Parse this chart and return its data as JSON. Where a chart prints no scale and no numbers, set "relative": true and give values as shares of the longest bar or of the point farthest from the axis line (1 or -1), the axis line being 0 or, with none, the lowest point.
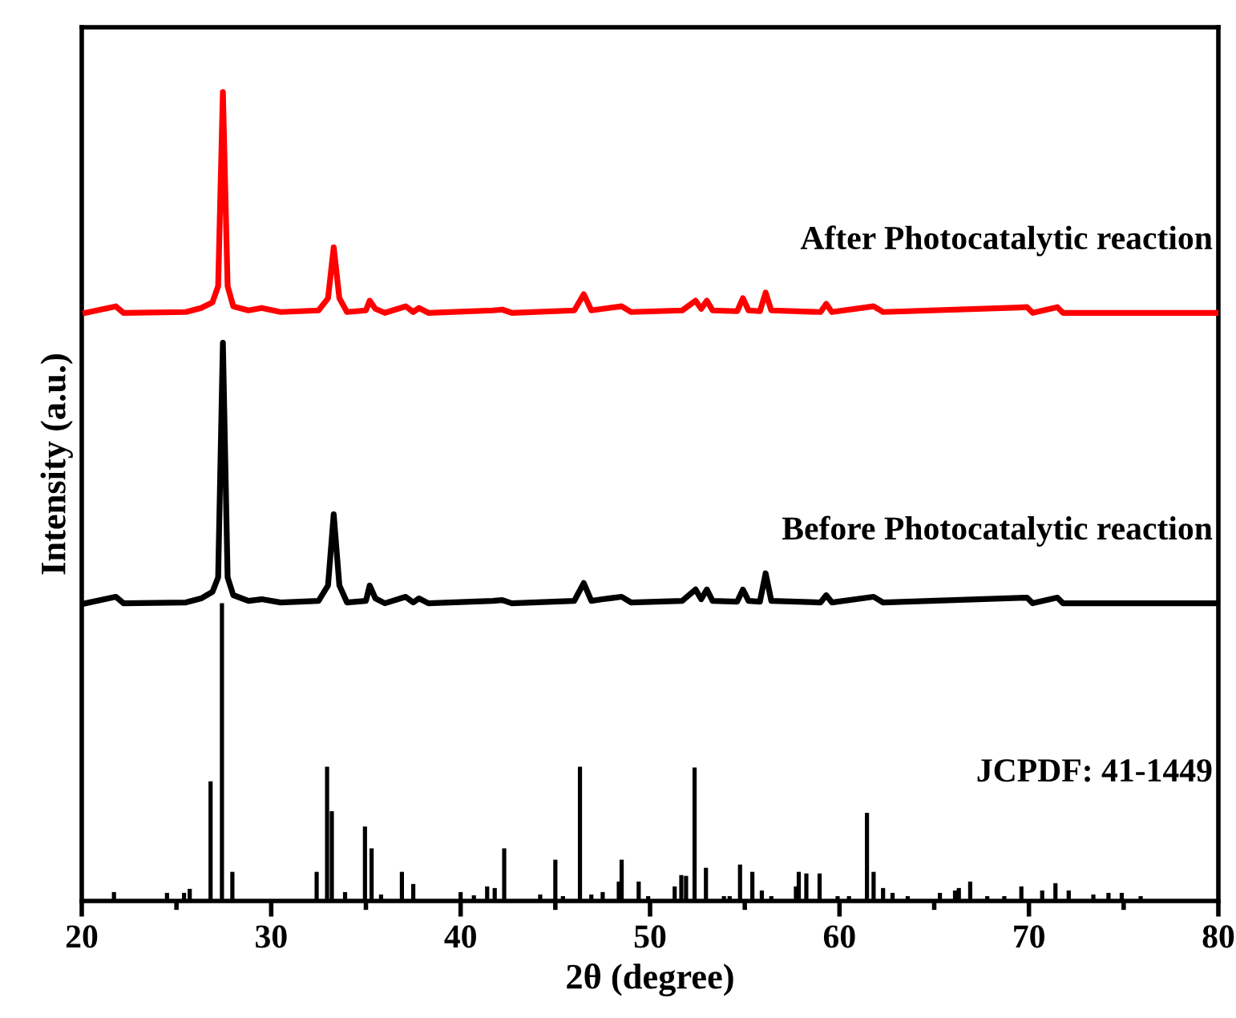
{
  "chart_data": {
    "type": "line",
    "relative": true,
    "xlabel": "2θ (degree)",
    "ylabel": "Intensity (a.u.)",
    "xlim": [
      20,
      80
    ],
    "xticks": [
      20,
      30,
      40,
      50,
      60,
      70,
      80
    ],
    "grid": false,
    "legend": false,
    "marker": "none",
    "line_style": "solid",
    "series": [
      {
        "name": "After Photocatalytic reaction",
        "color": "#ff0000",
        "x": [
          20.2,
          21.8,
          22.2,
          25.5,
          26.3,
          26.9,
          27.2,
          27.45,
          27.7,
          28.0,
          28.8,
          29.5,
          30.5,
          32.5,
          33.0,
          33.3,
          33.6,
          34.0,
          35.0,
          35.2,
          35.5,
          36.0,
          37.1,
          37.5,
          37.8,
          38.3,
          41.7,
          42.2,
          42.7,
          46.0,
          46.5,
          46.9,
          47.5,
          48.5,
          49.0,
          51.7,
          52.4,
          52.7,
          53.0,
          53.3,
          54.6,
          54.9,
          55.2,
          55.8,
          56.1,
          56.4,
          59.0,
          59.3,
          59.6,
          61.8,
          62.3,
          69.9,
          70.2,
          71.5,
          71.8,
          80
        ],
        "values": [
          0.727,
          0.735,
          0.727,
          0.728,
          0.733,
          0.74,
          0.76,
          1.0,
          0.76,
          0.735,
          0.73,
          0.733,
          0.728,
          0.73,
          0.745,
          0.808,
          0.745,
          0.728,
          0.73,
          0.742,
          0.732,
          0.727,
          0.735,
          0.728,
          0.733,
          0.727,
          0.73,
          0.731,
          0.727,
          0.73,
          0.75,
          0.73,
          0.732,
          0.735,
          0.728,
          0.73,
          0.742,
          0.732,
          0.742,
          0.73,
          0.729,
          0.745,
          0.73,
          0.729,
          0.752,
          0.73,
          0.728,
          0.738,
          0.728,
          0.735,
          0.728,
          0.734,
          0.727,
          0.734,
          0.727,
          0.727
        ]
      },
      {
        "name": "Before Photocatalytic reaction",
        "color": "#000000",
        "x": [
          20.2,
          21.8,
          22.2,
          25.5,
          26.3,
          26.9,
          27.2,
          27.45,
          27.7,
          28.0,
          28.8,
          29.5,
          30.5,
          32.5,
          33.0,
          33.3,
          33.6,
          34.0,
          35.0,
          35.2,
          35.5,
          36.0,
          37.1,
          37.5,
          37.8,
          38.3,
          41.7,
          42.2,
          42.7,
          46.0,
          46.5,
          46.9,
          47.5,
          48.5,
          49.0,
          51.7,
          52.4,
          52.7,
          53.0,
          53.3,
          54.6,
          54.9,
          55.2,
          55.8,
          56.1,
          56.4,
          59.0,
          59.3,
          59.6,
          61.8,
          62.3,
          69.9,
          70.2,
          71.5,
          71.8,
          80
        ],
        "values": [
          0.368,
          0.376,
          0.368,
          0.369,
          0.374,
          0.382,
          0.4,
          0.69,
          0.4,
          0.378,
          0.371,
          0.373,
          0.369,
          0.371,
          0.39,
          0.478,
          0.39,
          0.369,
          0.371,
          0.39,
          0.374,
          0.368,
          0.376,
          0.369,
          0.374,
          0.368,
          0.371,
          0.372,
          0.368,
          0.371,
          0.393,
          0.371,
          0.373,
          0.376,
          0.369,
          0.371,
          0.385,
          0.373,
          0.385,
          0.371,
          0.37,
          0.385,
          0.371,
          0.37,
          0.405,
          0.371,
          0.369,
          0.378,
          0.369,
          0.376,
          0.369,
          0.375,
          0.368,
          0.375,
          0.368,
          0.368
        ]
      },
      {
        "name": "JCPDF: 41-1449",
        "type": "bar",
        "color": "#000000",
        "x": [
          21.7,
          24.5,
          25.4,
          25.7,
          26.8,
          27.4,
          27.95,
          32.4,
          32.95,
          33.2,
          33.9,
          34.95,
          35.3,
          35.8,
          36.9,
          37.5,
          40.0,
          40.7,
          41.4,
          41.8,
          42.3,
          44.2,
          45.0,
          45.4,
          46.3,
          46.9,
          47.5,
          48.35,
          48.5,
          49.4,
          49.9,
          51.3,
          51.65,
          51.9,
          52.35,
          52.95,
          53.9,
          54.2,
          54.75,
          55.4,
          55.9,
          56.4,
          57.7,
          57.85,
          58.25,
          58.95,
          59.9,
          60.5,
          61.45,
          61.8,
          62.3,
          62.8,
          63.6,
          65.3,
          66.1,
          66.3,
          66.9,
          67.8,
          68.7,
          69.6,
          70.7,
          71.4,
          72.1,
          73.4,
          74.2,
          74.9,
          75.9
        ],
        "values": [
          0.011,
          0.01,
          0.01,
          0.015,
          0.148,
          0.368,
          0.036,
          0.036,
          0.166,
          0.111,
          0.011,
          0.092,
          0.065,
          0.008,
          0.036,
          0.021,
          0.011,
          0.007,
          0.018,
          0.016,
          0.065,
          0.008,
          0.051,
          0.006,
          0.166,
          0.008,
          0.011,
          0.024,
          0.051,
          0.024,
          0.006,
          0.018,
          0.032,
          0.031,
          0.165,
          0.041,
          0.006,
          0.006,
          0.045,
          0.036,
          0.013,
          0.006,
          0.018,
          0.036,
          0.034,
          0.034,
          0.006,
          0.006,
          0.109,
          0.036,
          0.016,
          0.01,
          0.006,
          0.01,
          0.013,
          0.016,
          0.024,
          0.006,
          0.006,
          0.018,
          0.013,
          0.022,
          0.013,
          0.008,
          0.01,
          0.01,
          0.006
        ]
      }
    ]
  }
}
